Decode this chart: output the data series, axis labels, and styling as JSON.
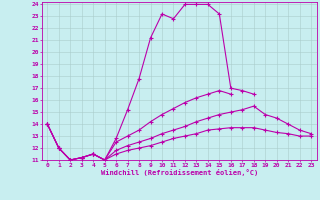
{
  "xlabel": "Windchill (Refroidissement éolien,°C)",
  "background_color": "#c8eef0",
  "grid_color": "#aacccc",
  "line_color": "#bb00aa",
  "xlim": [
    -0.5,
    23.5
  ],
  "ylim": [
    11,
    24.2
  ],
  "xticks": [
    0,
    1,
    2,
    3,
    4,
    5,
    6,
    7,
    8,
    9,
    10,
    11,
    12,
    13,
    14,
    15,
    16,
    17,
    18,
    19,
    20,
    21,
    22,
    23
  ],
  "yticks": [
    11,
    12,
    13,
    14,
    15,
    16,
    17,
    18,
    19,
    20,
    21,
    22,
    23,
    24
  ],
  "series": [
    {
      "x": [
        0,
        1,
        2,
        3,
        4,
        5,
        6,
        7,
        8,
        9,
        10,
        11,
        12,
        13,
        14,
        15,
        16,
        17,
        18,
        19,
        20,
        21,
        22,
        23
      ],
      "y": [
        14,
        12,
        11,
        11.2,
        11.5,
        11,
        12.8,
        15.2,
        17.8,
        21.2,
        23.2,
        22.8,
        24.0,
        24.0,
        24.0,
        23.2,
        17.0,
        16.8,
        16.5,
        null,
        null,
        null,
        null,
        null
      ]
    },
    {
      "x": [
        0,
        1,
        2,
        3,
        4,
        5,
        6,
        7,
        8,
        9,
        10,
        11,
        12,
        13,
        14,
        15,
        16,
        17,
        18,
        19,
        20,
        21,
        22,
        23
      ],
      "y": [
        14,
        12,
        11,
        11.2,
        11.5,
        11,
        12.5,
        13.0,
        13.5,
        14.2,
        14.8,
        15.3,
        15.8,
        16.2,
        16.5,
        16.8,
        16.5,
        null,
        null,
        null,
        null,
        null,
        null,
        null
      ]
    },
    {
      "x": [
        0,
        1,
        2,
        3,
        4,
        5,
        6,
        7,
        8,
        9,
        10,
        11,
        12,
        13,
        14,
        15,
        16,
        17,
        18,
        19,
        20,
        21,
        22,
        23
      ],
      "y": [
        14,
        12,
        11,
        11.2,
        11.5,
        11,
        11.8,
        12.2,
        12.5,
        12.8,
        13.2,
        13.5,
        13.8,
        14.2,
        14.5,
        14.8,
        15.0,
        15.2,
        15.5,
        14.8,
        14.5,
        14.0,
        13.5,
        13.2
      ]
    },
    {
      "x": [
        0,
        1,
        2,
        3,
        4,
        5,
        6,
        7,
        8,
        9,
        10,
        11,
        12,
        13,
        14,
        15,
        16,
        17,
        18,
        19,
        20,
        21,
        22,
        23
      ],
      "y": [
        14,
        12,
        11,
        11.2,
        11.5,
        11,
        11.5,
        11.8,
        12.0,
        12.2,
        12.5,
        12.8,
        13.0,
        13.2,
        13.5,
        13.6,
        13.7,
        13.7,
        13.7,
        13.5,
        13.3,
        13.2,
        13.0,
        13.0
      ]
    }
  ]
}
